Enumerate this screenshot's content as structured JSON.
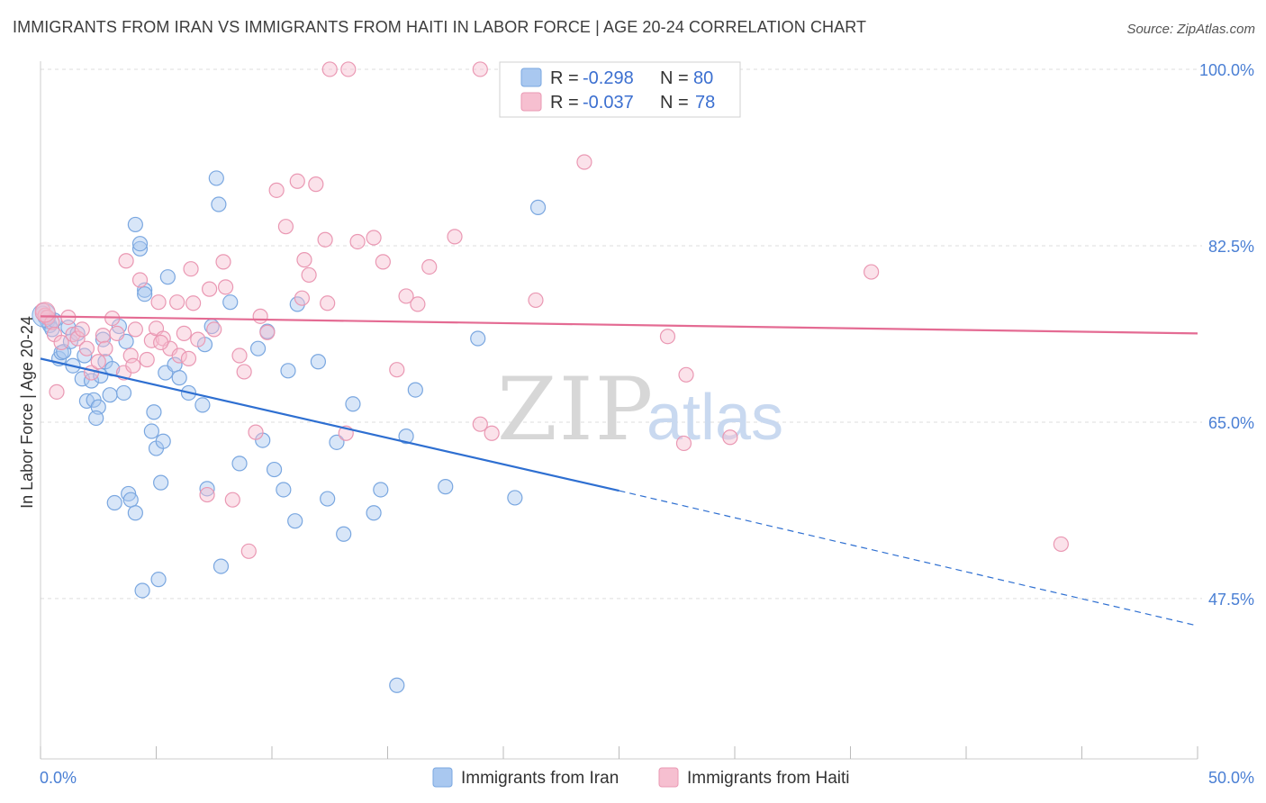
{
  "title": "IMMIGRANTS FROM IRAN VS IMMIGRANTS FROM HAITI IN LABOR FORCE | AGE 20-24 CORRELATION CHART",
  "source": "Source: ZipAtlas.com",
  "watermark": {
    "zip": "ZIP",
    "atlas": "atlas"
  },
  "colors": {
    "iran_fill": "#a9c8f0",
    "iran_stroke": "#7aa7e0",
    "iran_line": "#2e6fd1",
    "haiti_fill": "#f6bfd0",
    "haiti_stroke": "#ea98b3",
    "haiti_line": "#e46b93",
    "tick_label": "#4a7fd4",
    "grid": "#dddddd"
  },
  "legend": {
    "rows": [
      {
        "r_label": "R =",
        "r_value": "-0.298",
        "n_label": "N =",
        "n_value": "80"
      },
      {
        "r_label": "R =",
        "r_value": "-0.037",
        "n_label": "N =",
        "n_value": "78"
      }
    ]
  },
  "bottom_legend": [
    "Immigrants from Iran",
    "Immigrants from Haiti"
  ],
  "chart_data": {
    "type": "scatter",
    "title": "IMMIGRANTS FROM IRAN VS IMMIGRANTS FROM HAITI IN LABOR FORCE | AGE 20-24 CORRELATION CHART",
    "xlabel": "",
    "ylabel": "In Labor Force | Age 20-24",
    "xlim": [
      0,
      50
    ],
    "ylim": [
      31.6,
      100.8
    ],
    "x_tick_labels": [
      "0.0%",
      "50.0%"
    ],
    "y_ticks": [
      47.5,
      65.0,
      82.5,
      100.0
    ],
    "y_tick_labels": [
      "47.5%",
      "65.0%",
      "82.5%",
      "100.0%"
    ],
    "grid": "horizontal dashed",
    "legend_position": "top-center",
    "series": [
      {
        "name": "Immigrants from Iran",
        "r": -0.298,
        "n": 80,
        "trend": {
          "x": [
            0,
            25
          ],
          "y": [
            71.3,
            58.2
          ],
          "dashed_x": [
            25,
            50
          ],
          "dashed_y": [
            58.2,
            44.8
          ]
        },
        "points": [
          [
            0.1,
            75.8
          ],
          [
            0.2,
            75.4
          ],
          [
            0.3,
            75.0
          ],
          [
            0.4,
            74.6
          ],
          [
            0.5,
            74.2
          ],
          [
            0.6,
            75.1
          ],
          [
            0.8,
            71.3
          ],
          [
            0.9,
            71.9
          ],
          [
            1.0,
            72.0
          ],
          [
            1.2,
            74.4
          ],
          [
            1.3,
            73.0
          ],
          [
            1.4,
            70.6
          ],
          [
            1.6,
            73.8
          ],
          [
            1.8,
            69.3
          ],
          [
            1.9,
            71.6
          ],
          [
            2.0,
            67.1
          ],
          [
            2.2,
            69.1
          ],
          [
            2.3,
            67.2
          ],
          [
            2.5,
            66.5
          ],
          [
            2.6,
            69.6
          ],
          [
            2.7,
            73.2
          ],
          [
            2.8,
            71.0
          ],
          [
            3.0,
            67.7
          ],
          [
            3.1,
            70.3
          ],
          [
            3.2,
            57.0
          ],
          [
            3.4,
            74.5
          ],
          [
            3.6,
            67.9
          ],
          [
            3.8,
            57.9
          ],
          [
            3.9,
            57.3
          ],
          [
            4.1,
            56.0
          ],
          [
            4.4,
            48.3
          ],
          [
            4.5,
            78.1
          ],
          [
            4.3,
            82.2
          ],
          [
            4.1,
            84.6
          ],
          [
            4.3,
            82.7
          ],
          [
            4.5,
            77.7
          ],
          [
            4.8,
            64.1
          ],
          [
            4.9,
            66.0
          ],
          [
            5.0,
            62.4
          ],
          [
            5.1,
            49.4
          ],
          [
            5.2,
            59.0
          ],
          [
            5.3,
            63.1
          ],
          [
            5.4,
            69.9
          ],
          [
            5.5,
            79.4
          ],
          [
            5.8,
            70.7
          ],
          [
            6.4,
            67.9
          ],
          [
            7.0,
            66.7
          ],
          [
            7.1,
            72.7
          ],
          [
            7.2,
            58.4
          ],
          [
            7.4,
            74.5
          ],
          [
            7.6,
            89.2
          ],
          [
            7.7,
            86.6
          ],
          [
            7.8,
            50.7
          ],
          [
            8.2,
            76.9
          ],
          [
            8.6,
            60.9
          ],
          [
            9.4,
            72.3
          ],
          [
            9.6,
            63.2
          ],
          [
            10.1,
            60.3
          ],
          [
            10.5,
            58.3
          ],
          [
            10.7,
            70.1
          ],
          [
            11.0,
            55.2
          ],
          [
            11.1,
            76.7
          ],
          [
            12.0,
            71.0
          ],
          [
            12.4,
            57.4
          ],
          [
            12.8,
            63.0
          ],
          [
            13.1,
            53.9
          ],
          [
            13.5,
            66.8
          ],
          [
            14.4,
            56.0
          ],
          [
            14.7,
            58.3
          ],
          [
            15.4,
            38.9
          ],
          [
            16.2,
            68.2
          ],
          [
            17.5,
            58.6
          ],
          [
            18.9,
            73.3
          ],
          [
            20.5,
            57.5
          ],
          [
            21.5,
            86.3
          ],
          [
            2.4,
            65.4
          ],
          [
            6.0,
            69.4
          ],
          [
            3.7,
            73.0
          ],
          [
            9.8,
            74.0
          ],
          [
            15.8,
            63.6
          ]
        ]
      },
      {
        "name": "Immigrants from Haiti",
        "r": -0.037,
        "n": 78,
        "trend": {
          "x": [
            0,
            50
          ],
          "y": [
            75.5,
            73.8
          ]
        },
        "points": [
          [
            0.1,
            76.1
          ],
          [
            0.2,
            75.6
          ],
          [
            0.3,
            75.4
          ],
          [
            0.5,
            74.9
          ],
          [
            0.6,
            73.7
          ],
          [
            0.7,
            68.0
          ],
          [
            0.9,
            72.9
          ],
          [
            1.2,
            75.4
          ],
          [
            1.4,
            73.7
          ],
          [
            1.6,
            73.3
          ],
          [
            1.8,
            74.2
          ],
          [
            2.0,
            72.3
          ],
          [
            2.2,
            69.9
          ],
          [
            2.5,
            71.0
          ],
          [
            2.7,
            73.6
          ],
          [
            2.8,
            72.3
          ],
          [
            3.1,
            75.3
          ],
          [
            3.3,
            73.8
          ],
          [
            3.6,
            69.9
          ],
          [
            3.7,
            81.0
          ],
          [
            3.9,
            71.6
          ],
          [
            4.0,
            70.6
          ],
          [
            4.1,
            74.2
          ],
          [
            4.3,
            79.1
          ],
          [
            4.6,
            71.2
          ],
          [
            4.8,
            73.1
          ],
          [
            5.0,
            74.3
          ],
          [
            5.1,
            76.9
          ],
          [
            5.3,
            73.3
          ],
          [
            5.6,
            72.3
          ],
          [
            5.9,
            76.9
          ],
          [
            6.0,
            71.6
          ],
          [
            6.2,
            73.8
          ],
          [
            6.4,
            71.3
          ],
          [
            6.5,
            80.2
          ],
          [
            6.6,
            76.8
          ],
          [
            6.8,
            73.2
          ],
          [
            7.2,
            57.8
          ],
          [
            7.3,
            78.2
          ],
          [
            7.5,
            74.2
          ],
          [
            7.9,
            80.9
          ],
          [
            8.0,
            78.4
          ],
          [
            8.3,
            57.3
          ],
          [
            8.6,
            71.6
          ],
          [
            8.8,
            70.0
          ],
          [
            9.0,
            52.2
          ],
          [
            9.3,
            64.0
          ],
          [
            9.5,
            75.5
          ],
          [
            9.8,
            73.9
          ],
          [
            10.2,
            88.0
          ],
          [
            10.6,
            84.4
          ],
          [
            11.1,
            88.9
          ],
          [
            11.4,
            81.1
          ],
          [
            11.6,
            79.6
          ],
          [
            11.9,
            88.6
          ],
          [
            12.3,
            83.1
          ],
          [
            12.4,
            76.8
          ],
          [
            13.2,
            63.9
          ],
          [
            13.7,
            82.9
          ],
          [
            14.4,
            83.3
          ],
          [
            14.8,
            80.9
          ],
          [
            15.4,
            70.2
          ],
          [
            15.8,
            77.5
          ],
          [
            16.3,
            76.7
          ],
          [
            16.8,
            80.4
          ],
          [
            17.9,
            83.4
          ],
          [
            19.0,
            64.8
          ],
          [
            19.5,
            63.9
          ],
          [
            21.4,
            77.1
          ],
          [
            23.5,
            90.8
          ],
          [
            27.1,
            73.5
          ],
          [
            27.9,
            69.7
          ],
          [
            27.8,
            62.9
          ],
          [
            29.8,
            63.5
          ],
          [
            35.9,
            79.9
          ],
          [
            44.1,
            52.9
          ],
          [
            11.3,
            77.3
          ],
          [
            5.2,
            72.9
          ]
        ]
      },
      {
        "name": "Immigrants from Haiti (top)",
        "points": [
          [
            12.5,
            100.0
          ],
          [
            13.3,
            100.0
          ],
          [
            19.0,
            100.0
          ]
        ]
      }
    ]
  }
}
